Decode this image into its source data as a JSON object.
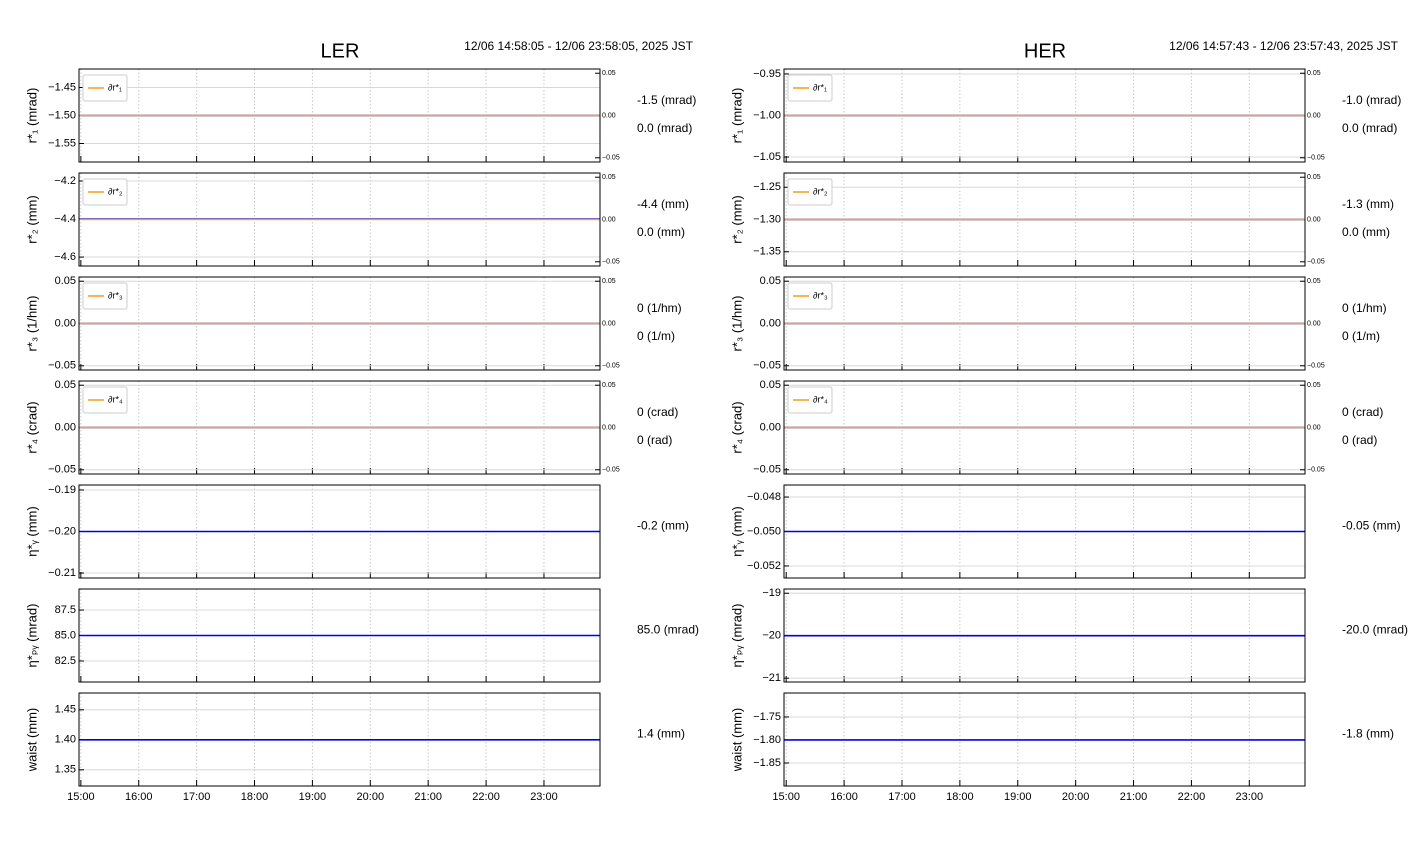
{
  "chart_data": [
    {
      "type": "line",
      "title": "LER",
      "subtitle": "12/06 14:58:05 - 12/06 23:58:05, 2025 JST",
      "xlim": [
        898.08,
        1438.08
      ],
      "xticks": [
        {
          "value": 900,
          "label": "15:00"
        },
        {
          "value": 960,
          "label": "16:00"
        },
        {
          "value": 1020,
          "label": "17:00"
        },
        {
          "value": 1080,
          "label": "18:00"
        },
        {
          "value": 1140,
          "label": "19:00"
        },
        {
          "value": 1200,
          "label": "20:00"
        },
        {
          "value": 1260,
          "label": "21:00"
        },
        {
          "value": 1320,
          "label": "22:00"
        },
        {
          "value": 1380,
          "label": "23:00"
        }
      ],
      "x": [
        898.08,
        1438.08
      ],
      "panels": [
        {
          "ylabel": "r*₁ (mrad)",
          "ylim": [
            -1.583,
            -1.417
          ],
          "yticks": [
            {
              "value": -1.45,
              "label": "−1.45"
            },
            {
              "value": -1.5,
              "label": "−1.50"
            },
            {
              "value": -1.55,
              "label": "−1.55"
            }
          ],
          "y2lim": [
            -0.055,
            0.055
          ],
          "y2ticks": [
            {
              "value": 0.05,
              "label": "0.05"
            },
            {
              "value": 0,
              "label": "0.00"
            },
            {
              "value": -0.05,
              "label": "−0.05"
            }
          ],
          "series": [
            {
              "color": "#0000ee",
              "values": [
                -1.5,
                -1.5
              ],
              "label": "-1.5 (mrad)"
            },
            {
              "name": "∂r*₁",
              "color": "#f2a52a",
              "axis": "y2",
              "values": [
                0,
                0
              ],
              "label": "0.0 (mrad)"
            }
          ]
        },
        {
          "ylabel": "r*₂ (mm)",
          "ylim": [
            -4.647,
            -4.158
          ],
          "yticks": [
            {
              "value": -4.2,
              "label": "−4.2"
            },
            {
              "value": -4.4,
              "label": "−4.4"
            },
            {
              "value": -4.6,
              "label": "−4.6"
            }
          ],
          "y2lim": [
            -0.055,
            0.055
          ],
          "y2ticks": [
            {
              "value": 0.05,
              "label": "0.05"
            },
            {
              "value": 0,
              "label": "0.00"
            },
            {
              "value": -0.05,
              "label": "−0.05"
            }
          ],
          "series": [
            {
              "color": "#0000ee",
              "values": [
                -4.4,
                -4.4
              ],
              "label": "-4.4 (mm)"
            },
            {
              "name": "∂r*₂",
              "color": "#f2a52a",
              "axis": "y2",
              "values": [
                0,
                0
              ],
              "label": "0.0 (mm)"
            }
          ]
        },
        {
          "ylabel": "r*₃ (1/hm)",
          "ylim": [
            -0.055,
            0.055
          ],
          "yticks": [
            {
              "value": 0.05,
              "label": "0.05"
            },
            {
              "value": 0,
              "label": "0.00"
            },
            {
              "value": -0.05,
              "label": "−0.05"
            }
          ],
          "y2lim": [
            -0.055,
            0.055
          ],
          "y2ticks": [
            {
              "value": 0.05,
              "label": "0.05"
            },
            {
              "value": 0,
              "label": "0.00"
            },
            {
              "value": -0.05,
              "label": "−0.05"
            }
          ],
          "series": [
            {
              "color": "#0000ee",
              "values": [
                0,
                0
              ],
              "label": "0 (1/hm)"
            },
            {
              "name": "∂r*₃",
              "color": "#f2a52a",
              "axis": "y2",
              "values": [
                0,
                0
              ],
              "label": "0 (1/m)"
            }
          ]
        },
        {
          "ylabel": "r*₄ (crad)",
          "ylim": [
            -0.055,
            0.055
          ],
          "yticks": [
            {
              "value": 0.05,
              "label": "0.05"
            },
            {
              "value": 0,
              "label": "0.00"
            },
            {
              "value": -0.05,
              "label": "−0.05"
            }
          ],
          "y2lim": [
            -0.055,
            0.055
          ],
          "y2ticks": [
            {
              "value": 0.05,
              "label": "0.05"
            },
            {
              "value": 0,
              "label": "0.00"
            },
            {
              "value": -0.05,
              "label": "−0.05"
            }
          ],
          "series": [
            {
              "color": "#0000ee",
              "values": [
                0,
                0
              ],
              "label": "0 (crad)"
            },
            {
              "name": "∂r*₄",
              "color": "#f2a52a",
              "axis": "y2",
              "values": [
                0,
                0
              ],
              "label": "0 (rad)"
            }
          ]
        },
        {
          "ylabel": "η*ᵧ (mm)",
          "ylim": [
            -0.2112,
            -0.1888
          ],
          "yticks": [
            {
              "value": -0.19,
              "label": "−0.19"
            },
            {
              "value": -0.2,
              "label": "−0.20"
            },
            {
              "value": -0.21,
              "label": "−0.21"
            }
          ],
          "series": [
            {
              "color": "#0000ee",
              "values": [
                -0.2,
                -0.2
              ],
              "label": "-0.2 (mm)"
            }
          ]
        },
        {
          "ylabel": "η*ₚᵧ (mrad)",
          "ylim": [
            80.44,
            89.56
          ],
          "yticks": [
            {
              "value": 87.5,
              "label": "87.5"
            },
            {
              "value": 85,
              "label": "85.0"
            },
            {
              "value": 82.5,
              "label": "82.5"
            }
          ],
          "series": [
            {
              "color": "#0000ee",
              "values": [
                85,
                85
              ],
              "label": "85.0 (mrad)"
            }
          ]
        },
        {
          "ylabel": "waist (mm)",
          "ylim": [
            1.323,
            1.478
          ],
          "yticks": [
            {
              "value": 1.45,
              "label": "1.45"
            },
            {
              "value": 1.4,
              "label": "1.40"
            },
            {
              "value": 1.35,
              "label": "1.35"
            }
          ],
          "series": [
            {
              "color": "#0000ee",
              "values": [
                1.4,
                1.4
              ],
              "label": "1.4 (mm)"
            }
          ]
        }
      ]
    },
    {
      "type": "line",
      "title": "HER",
      "subtitle": "12/06 14:57:43 - 12/06 23:57:43, 2025 JST",
      "xlim": [
        897.72,
        1437.72
      ],
      "xticks": [
        {
          "value": 900,
          "label": "15:00"
        },
        {
          "value": 960,
          "label": "16:00"
        },
        {
          "value": 1020,
          "label": "17:00"
        },
        {
          "value": 1080,
          "label": "18:00"
        },
        {
          "value": 1140,
          "label": "19:00"
        },
        {
          "value": 1200,
          "label": "20:00"
        },
        {
          "value": 1260,
          "label": "21:00"
        },
        {
          "value": 1320,
          "label": "22:00"
        },
        {
          "value": 1380,
          "label": "23:00"
        }
      ],
      "x": [
        897.72,
        1437.72
      ],
      "panels": [
        {
          "ylabel": "r*₁ (mrad)",
          "ylim": [
            -1.056,
            -0.944
          ],
          "yticks": [
            {
              "value": -0.95,
              "label": "−0.95"
            },
            {
              "value": -1,
              "label": "−1.00"
            },
            {
              "value": -1.05,
              "label": "−1.05"
            }
          ],
          "y2lim": [
            -0.055,
            0.055
          ],
          "y2ticks": [
            {
              "value": 0.05,
              "label": "0.05"
            },
            {
              "value": 0,
              "label": "0.00"
            },
            {
              "value": -0.05,
              "label": "−0.05"
            }
          ],
          "series": [
            {
              "color": "#0000ee",
              "values": [
                -1,
                -1
              ],
              "label": "-1.0 (mrad)"
            },
            {
              "name": "∂r*₁",
              "color": "#f2a52a",
              "axis": "y2",
              "values": [
                0,
                0
              ],
              "label": "0.0 (mrad)"
            }
          ]
        },
        {
          "ylabel": "r*₂ (mm)",
          "ylim": [
            -1.372,
            -1.228
          ],
          "yticks": [
            {
              "value": -1.25,
              "label": "−1.25"
            },
            {
              "value": -1.3,
              "label": "−1.30"
            },
            {
              "value": -1.35,
              "label": "−1.35"
            }
          ],
          "y2lim": [
            -0.055,
            0.055
          ],
          "y2ticks": [
            {
              "value": 0.05,
              "label": "0.05"
            },
            {
              "value": 0,
              "label": "0.00"
            },
            {
              "value": -0.05,
              "label": "−0.05"
            }
          ],
          "series": [
            {
              "color": "#0000ee",
              "values": [
                -1.3,
                -1.3
              ],
              "label": "-1.3 (mm)"
            },
            {
              "name": "∂r*₂",
              "color": "#f2a52a",
              "axis": "y2",
              "values": [
                0,
                0
              ],
              "label": "0.0 (mm)"
            }
          ]
        },
        {
          "ylabel": "r*₃ (1/hm)",
          "ylim": [
            -0.055,
            0.055
          ],
          "yticks": [
            {
              "value": 0.05,
              "label": "0.05"
            },
            {
              "value": 0,
              "label": "0.00"
            },
            {
              "value": -0.05,
              "label": "−0.05"
            }
          ],
          "y2lim": [
            -0.055,
            0.055
          ],
          "y2ticks": [
            {
              "value": 0.05,
              "label": "0.05"
            },
            {
              "value": 0,
              "label": "0.00"
            },
            {
              "value": -0.05,
              "label": "−0.05"
            }
          ],
          "series": [
            {
              "color": "#0000ee",
              "values": [
                0,
                0
              ],
              "label": "0 (1/hm)"
            },
            {
              "name": "∂r*₃",
              "color": "#f2a52a",
              "axis": "y2",
              "values": [
                0,
                0
              ],
              "label": "0 (1/m)"
            }
          ]
        },
        {
          "ylabel": "r*₄ (crad)",
          "ylim": [
            -0.055,
            0.055
          ],
          "yticks": [
            {
              "value": 0.05,
              "label": "0.05"
            },
            {
              "value": 0,
              "label": "0.00"
            },
            {
              "value": -0.05,
              "label": "−0.05"
            }
          ],
          "y2lim": [
            -0.055,
            0.055
          ],
          "y2ticks": [
            {
              "value": 0.05,
              "label": "0.05"
            },
            {
              "value": 0,
              "label": "0.00"
            },
            {
              "value": -0.05,
              "label": "−0.05"
            }
          ],
          "series": [
            {
              "color": "#0000ee",
              "values": [
                0,
                0
              ],
              "label": "0 (crad)"
            },
            {
              "name": "∂r*₄",
              "color": "#f2a52a",
              "axis": "y2",
              "values": [
                0,
                0
              ],
              "label": "0 (rad)"
            }
          ]
        },
        {
          "ylabel": "η*ᵧ (mm)",
          "ylim": [
            -0.0527,
            -0.0473
          ],
          "yticks": [
            {
              "value": -0.048,
              "label": "−0.048"
            },
            {
              "value": -0.05,
              "label": "−0.050"
            },
            {
              "value": -0.052,
              "label": "−0.052"
            }
          ],
          "series": [
            {
              "color": "#0000ee",
              "values": [
                -0.05,
                -0.05
              ],
              "label": "-0.05 (mm)"
            }
          ]
        },
        {
          "ylabel": "η*ₚᵧ (mrad)",
          "ylim": [
            -21.09,
            -18.9
          ],
          "yticks": [
            {
              "value": -19,
              "label": "−19"
            },
            {
              "value": -20,
              "label": "−20"
            },
            {
              "value": -21,
              "label": "−21"
            }
          ],
          "series": [
            {
              "color": "#0000ee",
              "values": [
                -20,
                -20
              ],
              "label": "-20.0 (mrad)"
            }
          ]
        },
        {
          "ylabel": "waist (mm)",
          "ylim": [
            -1.9,
            -1.698
          ],
          "yticks": [
            {
              "value": -1.75,
              "label": "−1.75"
            },
            {
              "value": -1.8,
              "label": "−1.80"
            },
            {
              "value": -1.85,
              "label": "−1.85"
            }
          ],
          "series": [
            {
              "color": "#0000ee",
              "values": [
                -1.8,
                -1.8
              ],
              "label": "-1.8 (mm)"
            }
          ]
        }
      ]
    }
  ]
}
